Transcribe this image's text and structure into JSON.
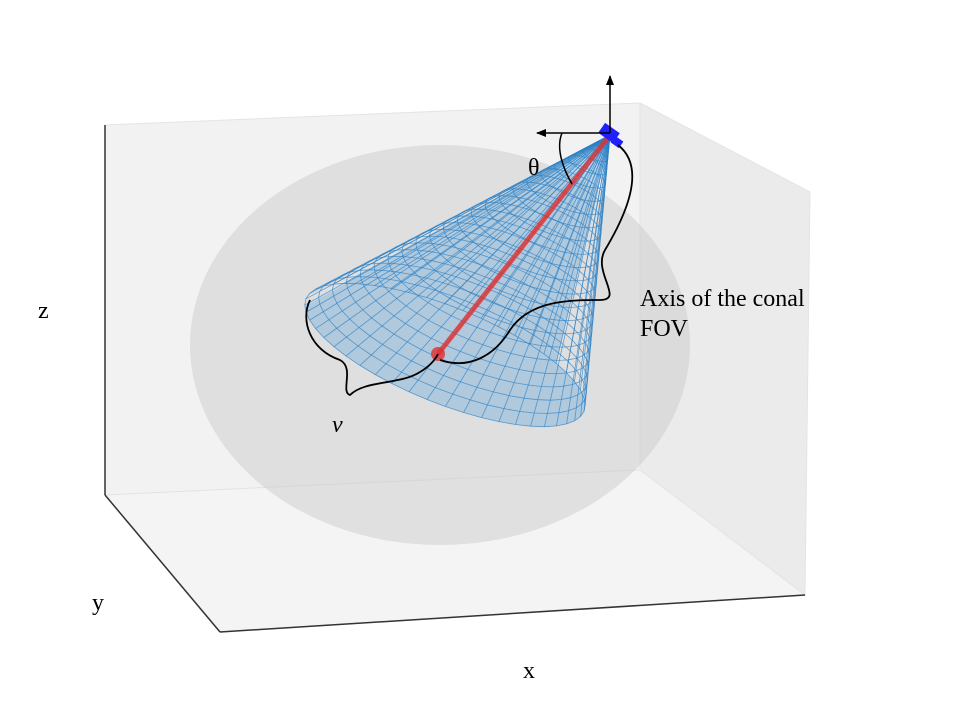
{
  "labels": {
    "theta": "θ",
    "axis": [
      "Axis of the conal",
      "FOV"
    ],
    "nu": "ν",
    "z": "z",
    "y": "y",
    "x": "x"
  }
}
